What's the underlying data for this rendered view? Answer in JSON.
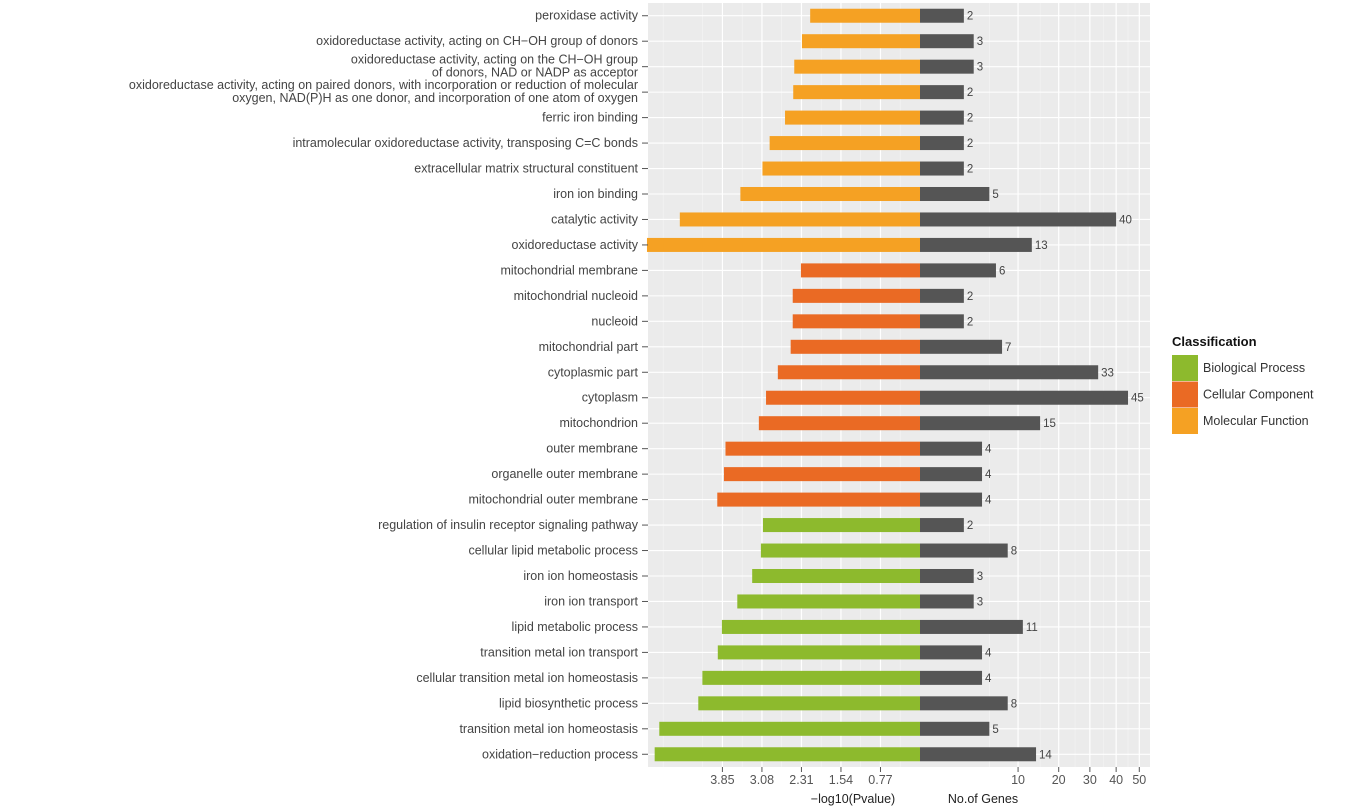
{
  "chart_data": {
    "type": "bar",
    "orientation": "horizontal",
    "panels": [
      {
        "name": "pvalue",
        "xlabel": "−log10(Pvalue)",
        "direction": "reversed",
        "xlim": [
          0,
          5.3
        ],
        "ticks": [
          3.85,
          3.08,
          2.31,
          1.54,
          0.77
        ],
        "tick_labels": [
          "3.85",
          "3.08",
          "2.31",
          "1.54",
          "0.77"
        ]
      },
      {
        "name": "genes",
        "xlabel": "No.of Genes",
        "scale": "sqrt",
        "xlim": [
          0,
          55
        ],
        "ticks": [
          10,
          20,
          30,
          40,
          50
        ],
        "tick_labels": [
          "10",
          "20",
          "30",
          "40",
          "50"
        ]
      }
    ],
    "legend": {
      "title": "Classification",
      "placement": "right",
      "items": [
        {
          "label": "Biological Process",
          "color": "#8dba2d"
        },
        {
          "label": "Cellular Component",
          "color": "#ea6a24"
        },
        {
          "label": "Molecular Function",
          "color": "#f5a123"
        }
      ]
    },
    "genes_bar_color": "#555555",
    "categories": [
      {
        "lines": [
          "peroxidase activity"
        ],
        "class": "Molecular Function",
        "neglog10p": 2.14,
        "genes": 2
      },
      {
        "lines": [
          "oxidoreductase activity, acting on CH−OH group of donors"
        ],
        "class": "Molecular Function",
        "neglog10p": 2.3,
        "genes": 3
      },
      {
        "lines": [
          "oxidoreductase activity, acting on the CH−OH group",
          "of donors, NAD or NADP as acceptor"
        ],
        "class": "Molecular Function",
        "neglog10p": 2.45,
        "genes": 3
      },
      {
        "lines": [
          "oxidoreductase activity, acting on paired donors, with incorporation or reduction of molecular",
          "oxygen, NAD(P)H as one donor, and incorporation of one atom of oxygen"
        ],
        "class": "Molecular Function",
        "neglog10p": 2.47,
        "genes": 2
      },
      {
        "lines": [
          "ferric iron binding"
        ],
        "class": "Molecular Function",
        "neglog10p": 2.63,
        "genes": 2
      },
      {
        "lines": [
          "intramolecular oxidoreductase activity, transposing C=C bonds"
        ],
        "class": "Molecular Function",
        "neglog10p": 2.93,
        "genes": 2
      },
      {
        "lines": [
          "extracellular matrix structural constituent"
        ],
        "class": "Molecular Function",
        "neglog10p": 3.07,
        "genes": 2
      },
      {
        "lines": [
          "iron ion binding"
        ],
        "class": "Molecular Function",
        "neglog10p": 3.5,
        "genes": 5
      },
      {
        "lines": [
          "catalytic activity"
        ],
        "class": "Molecular Function",
        "neglog10p": 4.68,
        "genes": 40
      },
      {
        "lines": [
          "oxidoreductase activity"
        ],
        "class": "Molecular Function",
        "neglog10p": 5.32,
        "genes": 13
      },
      {
        "lines": [
          "mitochondrial membrane"
        ],
        "class": "Cellular Component",
        "neglog10p": 2.32,
        "genes": 6
      },
      {
        "lines": [
          "mitochondrial nucleoid"
        ],
        "class": "Cellular Component",
        "neglog10p": 2.48,
        "genes": 2
      },
      {
        "lines": [
          "nucleoid"
        ],
        "class": "Cellular Component",
        "neglog10p": 2.48,
        "genes": 2
      },
      {
        "lines": [
          "mitochondrial part"
        ],
        "class": "Cellular Component",
        "neglog10p": 2.52,
        "genes": 7
      },
      {
        "lines": [
          "cytoplasmic part"
        ],
        "class": "Cellular Component",
        "neglog10p": 2.77,
        "genes": 33
      },
      {
        "lines": [
          "cytoplasm"
        ],
        "class": "Cellular Component",
        "neglog10p": 3.0,
        "genes": 45
      },
      {
        "lines": [
          "mitochondrion"
        ],
        "class": "Cellular Component",
        "neglog10p": 3.14,
        "genes": 15
      },
      {
        "lines": [
          "outer membrane"
        ],
        "class": "Cellular Component",
        "neglog10p": 3.79,
        "genes": 4
      },
      {
        "lines": [
          "organelle outer membrane"
        ],
        "class": "Cellular Component",
        "neglog10p": 3.82,
        "genes": 4
      },
      {
        "lines": [
          "mitochondrial outer membrane"
        ],
        "class": "Cellular Component",
        "neglog10p": 3.95,
        "genes": 4
      },
      {
        "lines": [
          "regulation of insulin receptor signaling pathway"
        ],
        "class": "Biological Process",
        "neglog10p": 3.06,
        "genes": 2
      },
      {
        "lines": [
          "cellular lipid metabolic process"
        ],
        "class": "Biological Process",
        "neglog10p": 3.1,
        "genes": 8
      },
      {
        "lines": [
          "iron ion homeostasis"
        ],
        "class": "Biological Process",
        "neglog10p": 3.27,
        "genes": 3
      },
      {
        "lines": [
          "iron ion transport"
        ],
        "class": "Biological Process",
        "neglog10p": 3.56,
        "genes": 3
      },
      {
        "lines": [
          "lipid metabolic process"
        ],
        "class": "Biological Process",
        "neglog10p": 3.86,
        "genes": 11
      },
      {
        "lines": [
          "transition metal ion transport"
        ],
        "class": "Biological Process",
        "neglog10p": 3.94,
        "genes": 4
      },
      {
        "lines": [
          "cellular transition metal ion homeostasis"
        ],
        "class": "Biological Process",
        "neglog10p": 4.24,
        "genes": 4
      },
      {
        "lines": [
          "lipid biosynthetic process"
        ],
        "class": "Biological Process",
        "neglog10p": 4.32,
        "genes": 8
      },
      {
        "lines": [
          "transition metal ion homeostasis"
        ],
        "class": "Biological Process",
        "neglog10p": 5.08,
        "genes": 5
      },
      {
        "lines": [
          "oxidation−reduction process"
        ],
        "class": "Biological Process",
        "neglog10p": 5.17,
        "genes": 14
      }
    ]
  }
}
